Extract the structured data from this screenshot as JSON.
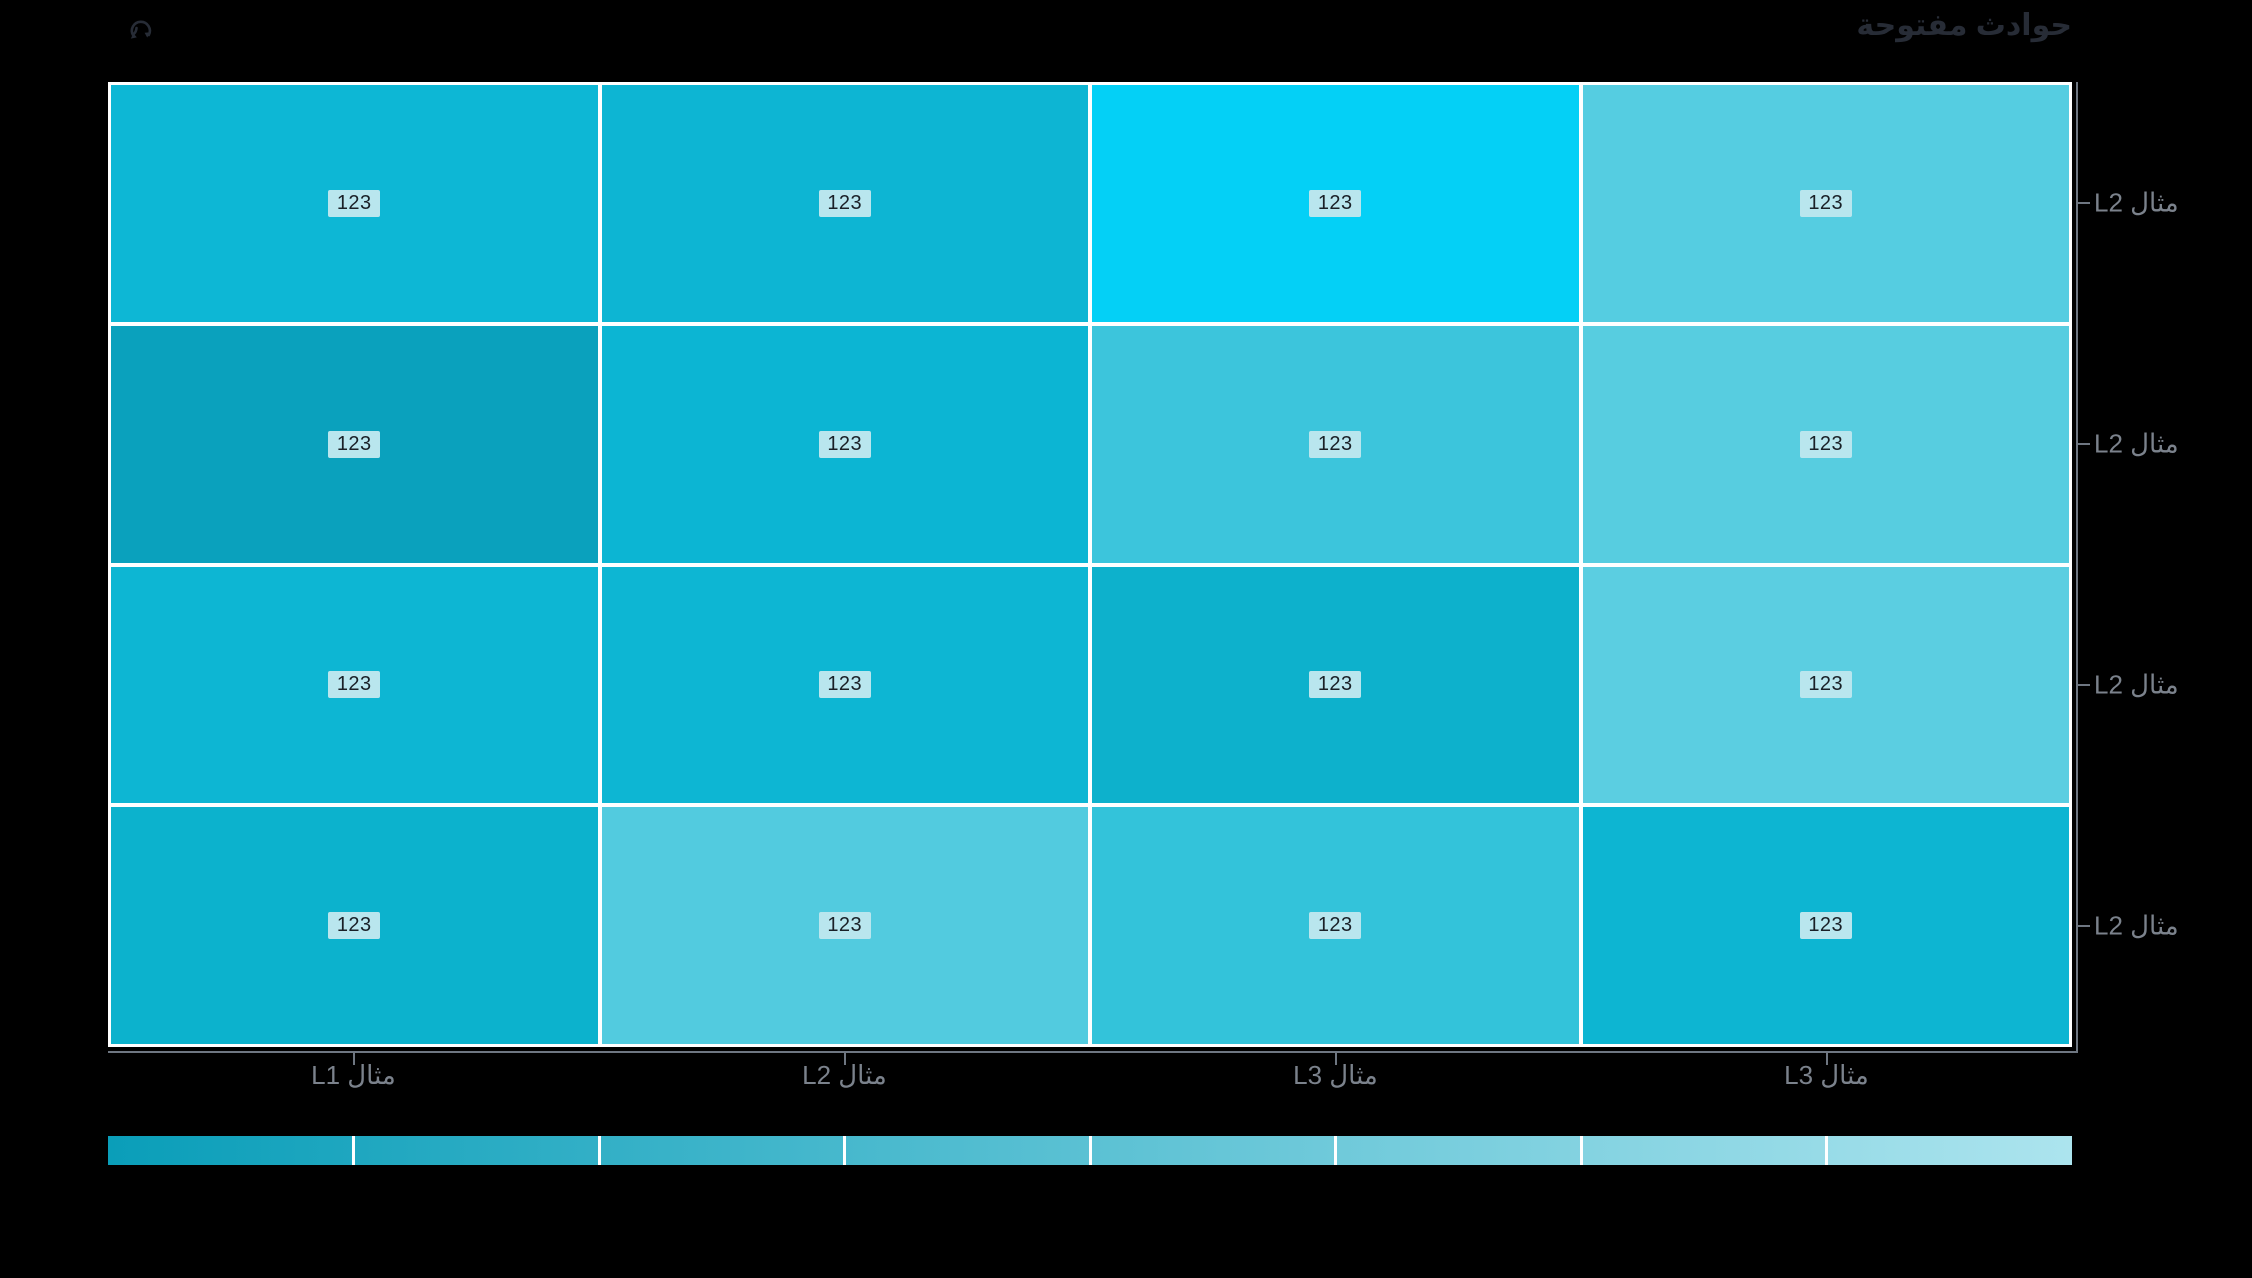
{
  "panel": {
    "title": "حوادث مفتوحة"
  },
  "icons": {
    "refresh": "refresh-icon"
  },
  "colors": {
    "background": "#000000",
    "title_text": "#272c36",
    "axis_label_text": "#7b828c",
    "axis_line": "#6e7681",
    "grid_line": "#ffffff",
    "cell_label_bg": "#b9e6ee",
    "cell_label_text": "#1a2027"
  },
  "chart_data": {
    "type": "heatmap",
    "title": "حوادث مفتوحة",
    "direction": "rtl",
    "x_categories": [
      "مثال L1",
      "مثال L2",
      "مثال L3",
      "مثال L3"
    ],
    "y_categories": [
      "مثال L2",
      "مثال L2",
      "مثال L2",
      "مثال L2"
    ],
    "rows": [
      {
        "y_label": "مثال L2",
        "values": [
          123,
          123,
          123,
          123
        ],
        "colors": [
          "#0db7d5",
          "#0db5d3",
          "#04d0f6",
          "#55cde1"
        ]
      },
      {
        "y_label": "مثال L2",
        "values": [
          123,
          123,
          123,
          123
        ],
        "colors": [
          "#0aa1bd",
          "#0cb5d3",
          "#3cc5dc",
          "#57cde0"
        ]
      },
      {
        "y_label": "مثال L2",
        "values": [
          123,
          123,
          123,
          123
        ],
        "colors": [
          "#0db6d3",
          "#0db6d3",
          "#0db1cc",
          "#5bcee1"
        ]
      },
      {
        "y_label": "مثال L2",
        "values": [
          123,
          123,
          123,
          123
        ],
        "colors": [
          "#0cb2cd",
          "#52cbdf",
          "#33c3da",
          "#0db5d2"
        ]
      }
    ],
    "cell_display_value": "123",
    "legend": {
      "position": "bottom",
      "style": "gradient-bar",
      "segments": 8,
      "color_start": "#0a9eb9",
      "color_end": "#ace4ee"
    },
    "axes": {
      "x_axis_side": "bottom",
      "y_axis_side": "right",
      "tick_marks": true
    }
  }
}
